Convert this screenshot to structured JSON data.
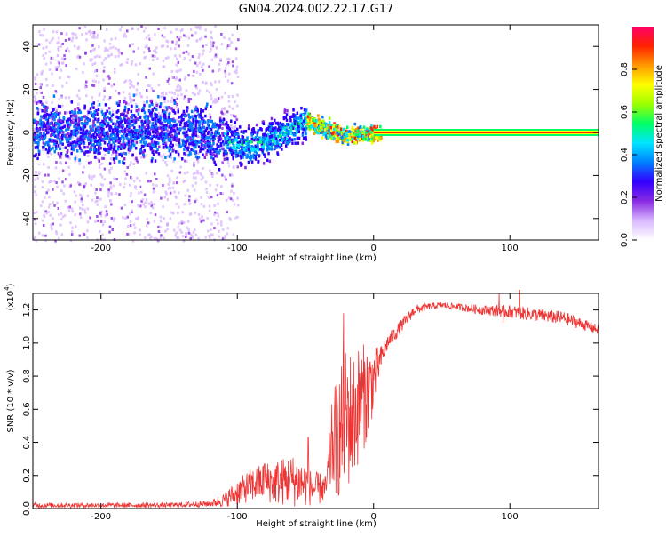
{
  "title": "GN04.2024.002.22.17.G17",
  "chart_data": [
    {
      "type": "heatmap",
      "xlabel": "Height of straight line (km)",
      "ylabel": "Frequency (Hz)",
      "xlim": [
        -250,
        165
      ],
      "ylim": [
        -50,
        50
      ],
      "xticks": [
        -200,
        -100,
        0,
        100
      ],
      "yticks": [
        -40,
        -20,
        0,
        20,
        40
      ],
      "colorbar": {
        "label": "Normalized spectral amplitude",
        "range": [
          0,
          1
        ],
        "ticks": [
          "0.0",
          "0.2",
          "0.4",
          "0.6",
          "0.8"
        ],
        "colors": [
          "#ffffff",
          "#d9b8ff",
          "#8a2be2",
          "#3300ff",
          "#0080ff",
          "#00e5ff",
          "#00ff66",
          "#9cff00",
          "#ffff00",
          "#ff9900",
          "#ff2200",
          "#ff0066"
        ]
      },
      "ridge": {
        "x": [
          -250,
          -200,
          -150,
          -110,
          -100,
          -90,
          -80,
          -70,
          -60,
          -50,
          -45,
          -40,
          -30,
          -20,
          -10,
          0,
          50,
          100,
          165
        ],
        "y": [
          2,
          0,
          3,
          -3,
          -5,
          -6,
          -3,
          -1,
          3,
          6,
          5,
          3,
          1,
          -1,
          0,
          0,
          0,
          0,
          0
        ]
      }
    },
    {
      "type": "line",
      "xlabel": "Height of straight line (km)",
      "ylabel": "SNR (10 * v/v)",
      "yscale_label": "(x10",
      "yscale_exp": "4",
      "yscale_close": ")",
      "xlim": [
        -250,
        165
      ],
      "ylim": [
        0,
        1.3
      ],
      "xticks": [
        -200,
        -100,
        0,
        100
      ],
      "yticks": [
        "0.0",
        "0.2",
        "0.4",
        "0.6",
        "0.8",
        "1.0",
        "1.2"
      ],
      "color": "#ee3333",
      "envelope": {
        "x": [
          -250,
          -200,
          -150,
          -120,
          -110,
          -100,
          -90,
          -80,
          -70,
          -60,
          -50,
          -45,
          -40,
          -35,
          -30,
          -25,
          -20,
          -15,
          -10,
          -5,
          0,
          5,
          10,
          20,
          30,
          40,
          50,
          60,
          80,
          100,
          120,
          140,
          165
        ],
        "base": [
          0.02,
          0.02,
          0.02,
          0.03,
          0.05,
          0.1,
          0.14,
          0.16,
          0.16,
          0.17,
          0.15,
          0.12,
          0.12,
          0.12,
          0.4,
          0.45,
          0.55,
          0.55,
          0.65,
          0.7,
          0.78,
          0.9,
          1.0,
          1.1,
          1.2,
          1.22,
          1.23,
          1.22,
          1.2,
          1.19,
          1.17,
          1.15,
          1.08
        ],
        "noise": [
          0.015,
          0.015,
          0.015,
          0.02,
          0.04,
          0.08,
          0.1,
          0.12,
          0.14,
          0.16,
          0.14,
          0.1,
          0.1,
          0.08,
          0.3,
          0.4,
          0.45,
          0.4,
          0.35,
          0.3,
          0.2,
          0.08,
          0.05,
          0.04,
          0.03,
          0.02,
          0.02,
          0.02,
          0.03,
          0.04,
          0.04,
          0.04,
          0.03
        ]
      },
      "spikes": [
        {
          "x": 107,
          "y": 1.32
        },
        {
          "x": 92,
          "y": 1.3
        },
        {
          "x": 95,
          "y": 1.12
        },
        {
          "x": -22,
          "y": 1.18
        },
        {
          "x": -48,
          "y": 0.43
        },
        {
          "x": -80,
          "y": 0.27
        }
      ]
    }
  ]
}
